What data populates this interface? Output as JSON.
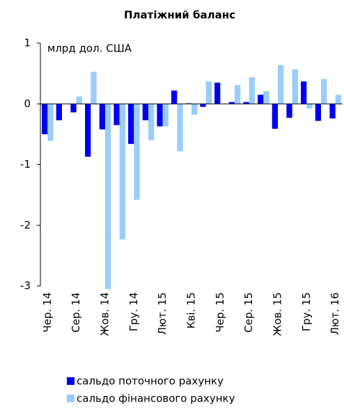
{
  "chart_data": {
    "type": "bar",
    "title": "Платіжний баланс",
    "y_label": "млрд дол. США",
    "categories": [
      "Чер. 14",
      null,
      "Сер. 14",
      null,
      "Жов. 14",
      null,
      "Гру. 14",
      null,
      "Лют. 15",
      null,
      "Кві. 15",
      null,
      "Чер. 15",
      null,
      "Сер. 15",
      null,
      "Жов. 15",
      null,
      "Гру. 15",
      null,
      "Лют. 16"
    ],
    "series": [
      {
        "name": "сальдо поточного рахунку",
        "color": "#0000ee",
        "values": [
          -0.5,
          -0.27,
          -0.14,
          -0.87,
          -0.42,
          -0.35,
          -0.66,
          -0.27,
          -0.37,
          0.22,
          0.01,
          -0.05,
          0.35,
          0.03,
          0.03,
          0.15,
          -0.41,
          -0.23,
          0.37,
          -0.28,
          -0.24
        ]
      },
      {
        "name": "сальдо фінансового рахунку",
        "color": "#99ccff",
        "values": [
          -0.61,
          0,
          0.12,
          0.53,
          -3.05,
          -2.23,
          -1.58,
          -0.6,
          -0.37,
          -0.78,
          -0.18,
          0.37,
          0,
          0.31,
          0.44,
          0.21,
          0.64,
          0.57,
          -0.08,
          0.41,
          0.15
        ]
      }
    ],
    "ylim": [
      -3,
      1
    ],
    "yticks": [
      -3,
      -2,
      -1,
      0,
      1
    ]
  }
}
